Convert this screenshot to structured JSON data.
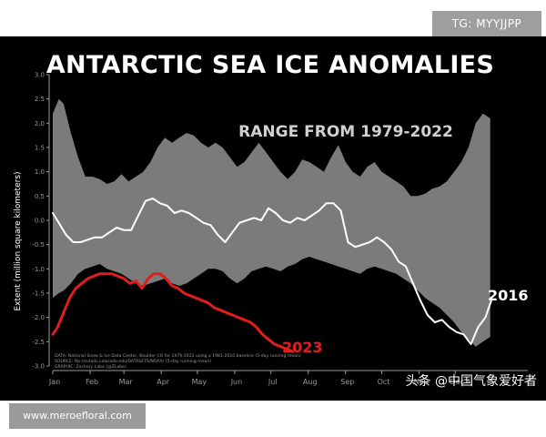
{
  "badge_top": "TG: MYYJJPP",
  "badge_bottom": "www.meroefloral.com",
  "watermark": "头条 @中国气象爱好者",
  "colors": {
    "range": "#7b7b7b",
    "y2016": "#ffffff",
    "y2023": "#e01e1e",
    "background": "#000000"
  },
  "chart_data": {
    "type": "area",
    "title": "ANTARCTIC SEA ICE ANOMALIES",
    "range_label": "RANGE FROM 1979-2022",
    "ylabel": "Extent (million square kilometers)",
    "xlabel": "",
    "ylim": [
      -3.0,
      3.0
    ],
    "yticks": [
      "3.0",
      "2.5",
      "2.0",
      "1.5",
      "1.0",
      "0.5",
      "0.0",
      "-0.5",
      "-1.0",
      "-1.5",
      "-2.0",
      "-2.5",
      "-3.0"
    ],
    "months": [
      "Jan",
      "Feb",
      "Mar",
      "Apr",
      "May",
      "Jun",
      "Jul",
      "Aug",
      "Sep",
      "Oct",
      "Nov",
      "Dec"
    ],
    "grid": false,
    "range_band": {
      "name": "RANGE FROM 1979-2022",
      "day": [
        1,
        6,
        10,
        16,
        22,
        28,
        34,
        40,
        46,
        52,
        58,
        64,
        70,
        76,
        82,
        88,
        94,
        100,
        106,
        112,
        118,
        124,
        130,
        136,
        142,
        148,
        154,
        160,
        166,
        172,
        178,
        184,
        190,
        196,
        202,
        208,
        214,
        220,
        226,
        232,
        238,
        244,
        250,
        256,
        262,
        268,
        274,
        280,
        286,
        292,
        298,
        304,
        310,
        316,
        322,
        328,
        334,
        340,
        346,
        352,
        358,
        364
      ],
      "upper": [
        2.2,
        2.5,
        2.4,
        1.8,
        1.3,
        0.9,
        0.9,
        0.85,
        0.75,
        0.8,
        0.95,
        0.8,
        0.9,
        1.0,
        1.2,
        1.5,
        1.7,
        1.6,
        1.7,
        1.8,
        1.75,
        1.6,
        1.5,
        1.6,
        1.5,
        1.3,
        1.1,
        1.2,
        1.4,
        1.6,
        1.4,
        1.2,
        1.0,
        0.85,
        1.0,
        1.25,
        1.2,
        1.1,
        1.0,
        1.3,
        1.55,
        1.2,
        1.0,
        0.9,
        1.1,
        1.2,
        1.0,
        0.9,
        0.8,
        0.7,
        0.5,
        0.5,
        0.55,
        0.65,
        0.7,
        0.8,
        1.0,
        1.2,
        1.5,
        2.0,
        2.2,
        2.1
      ],
      "lower": [
        -1.6,
        -1.5,
        -1.45,
        -1.3,
        -1.1,
        -1.0,
        -0.95,
        -0.9,
        -1.0,
        -1.05,
        -1.1,
        -1.2,
        -1.3,
        -1.35,
        -1.3,
        -1.25,
        -1.2,
        -1.3,
        -1.35,
        -1.3,
        -1.2,
        -1.1,
        -1.0,
        -1.0,
        -1.05,
        -1.2,
        -1.3,
        -1.2,
        -1.05,
        -1.0,
        -0.95,
        -1.0,
        -1.05,
        -0.95,
        -0.9,
        -0.8,
        -0.75,
        -0.8,
        -0.85,
        -0.9,
        -0.95,
        -1.0,
        -1.05,
        -1.1,
        -1.0,
        -0.95,
        -1.0,
        -1.05,
        -1.1,
        -1.2,
        -1.3,
        -1.45,
        -1.6,
        -1.7,
        -1.8,
        -1.95,
        -2.1,
        -2.3,
        -2.45,
        -2.6,
        -2.5,
        -2.4
      ]
    },
    "series": [
      {
        "name": "2016",
        "day": [
          1,
          6,
          12,
          18,
          24,
          30,
          36,
          42,
          48,
          54,
          60,
          66,
          72,
          78,
          84,
          90,
          96,
          102,
          108,
          114,
          120,
          126,
          132,
          138,
          144,
          150,
          156,
          162,
          168,
          174,
          180,
          186,
          192,
          198,
          204,
          210,
          216,
          222,
          228,
          234,
          240,
          246,
          252,
          258,
          264,
          270,
          276,
          282,
          288,
          294,
          300,
          306,
          312,
          318,
          324,
          330,
          336,
          342,
          348,
          354,
          360,
          365
        ],
        "values": [
          0.15,
          -0.05,
          -0.3,
          -0.45,
          -0.45,
          -0.4,
          -0.35,
          -0.35,
          -0.25,
          -0.15,
          -0.2,
          -0.2,
          0.1,
          0.4,
          0.45,
          0.35,
          0.3,
          0.15,
          0.2,
          0.15,
          0.05,
          -0.05,
          -0.1,
          -0.3,
          -0.45,
          -0.25,
          -0.05,
          0.0,
          0.05,
          0.0,
          0.25,
          0.15,
          0.0,
          -0.05,
          0.05,
          0.0,
          0.1,
          0.2,
          0.35,
          0.35,
          0.2,
          -0.45,
          -0.55,
          -0.5,
          -0.45,
          -0.35,
          -0.45,
          -0.6,
          -0.85,
          -0.95,
          -1.3,
          -1.65,
          -1.95,
          -2.1,
          -2.05,
          -2.2,
          -2.3,
          -2.35,
          -2.55,
          -2.2,
          -2.0,
          -1.65
        ]
      },
      {
        "name": "2023",
        "day": [
          1,
          5,
          10,
          15,
          20,
          25,
          30,
          35,
          40,
          45,
          50,
          55,
          60,
          65,
          70,
          75,
          80,
          85,
          90,
          95,
          100,
          105,
          110,
          115,
          120,
          125,
          130,
          135,
          140,
          145,
          150,
          155,
          160,
          165,
          170,
          175,
          180,
          185,
          190,
          195,
          200
        ],
        "values": [
          -2.35,
          -2.2,
          -1.9,
          -1.6,
          -1.4,
          -1.3,
          -1.2,
          -1.15,
          -1.1,
          -1.1,
          -1.1,
          -1.15,
          -1.2,
          -1.3,
          -1.25,
          -1.4,
          -1.2,
          -1.1,
          -1.1,
          -1.2,
          -1.35,
          -1.4,
          -1.5,
          -1.55,
          -1.6,
          -1.65,
          -1.7,
          -1.8,
          -1.85,
          -1.9,
          -1.95,
          -2.0,
          -2.05,
          -2.1,
          -2.2,
          -2.35,
          -2.45,
          -2.55,
          -2.6,
          -2.65,
          -2.7
        ]
      }
    ],
    "source_lines": [
      "DATA: National Snow & Ice Data Center, Boulder CO for 1979-2022 using a 1981-2010 baseline (5-day running mean)",
      "SOURCE: ftp://sidads.colorado.edu/DATASETS/NOAA/ (5-day running mean)",
      "GRAPHIC: Zachary Labe (@ZLabe)"
    ]
  }
}
